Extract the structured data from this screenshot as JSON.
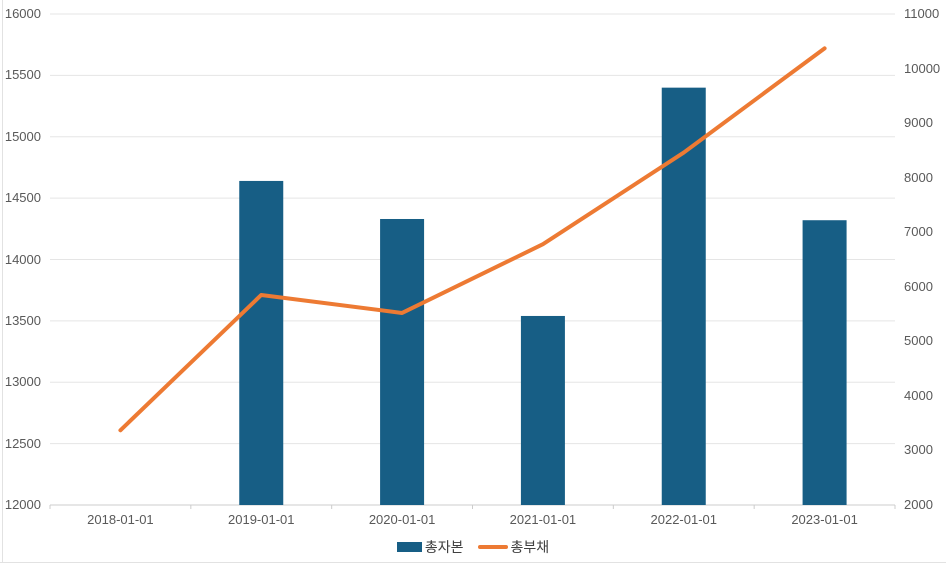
{
  "chart_data": {
    "type": "bar+line",
    "title": "",
    "categories": [
      "2018-01-01",
      "2019-01-01",
      "2020-01-01",
      "2021-01-01",
      "2022-01-01",
      "2023-01-01"
    ],
    "series": [
      {
        "name": "총자본",
        "type": "bar",
        "axis": "left",
        "color": "#175e85",
        "values": [
          null,
          14640,
          14330,
          13540,
          15400,
          14320
        ]
      },
      {
        "name": "총부채",
        "type": "line",
        "axis": "right",
        "color": "#ed7a33",
        "values": [
          3370,
          5850,
          5520,
          6780,
          8460,
          10370
        ]
      }
    ],
    "left_axis": {
      "min": 12000,
      "max": 16000,
      "step": 500,
      "ticks": [
        16000,
        15500,
        15000,
        14500,
        14000,
        13500,
        13000,
        12500,
        12000
      ]
    },
    "right_axis": {
      "min": 2000,
      "max": 11000,
      "step": 1000,
      "ticks": [
        11000,
        10000,
        9000,
        8000,
        7000,
        6000,
        5000,
        4000,
        3000,
        2000
      ]
    },
    "grid": "horizontal",
    "legend_position": "bottom"
  },
  "colors": {
    "bar": "#175e85",
    "line": "#ed7a33",
    "gridline": "#e5e5e5",
    "axis_line": "#cccccc",
    "tick_text": "#595959",
    "page_border": "#e2e2e2"
  }
}
